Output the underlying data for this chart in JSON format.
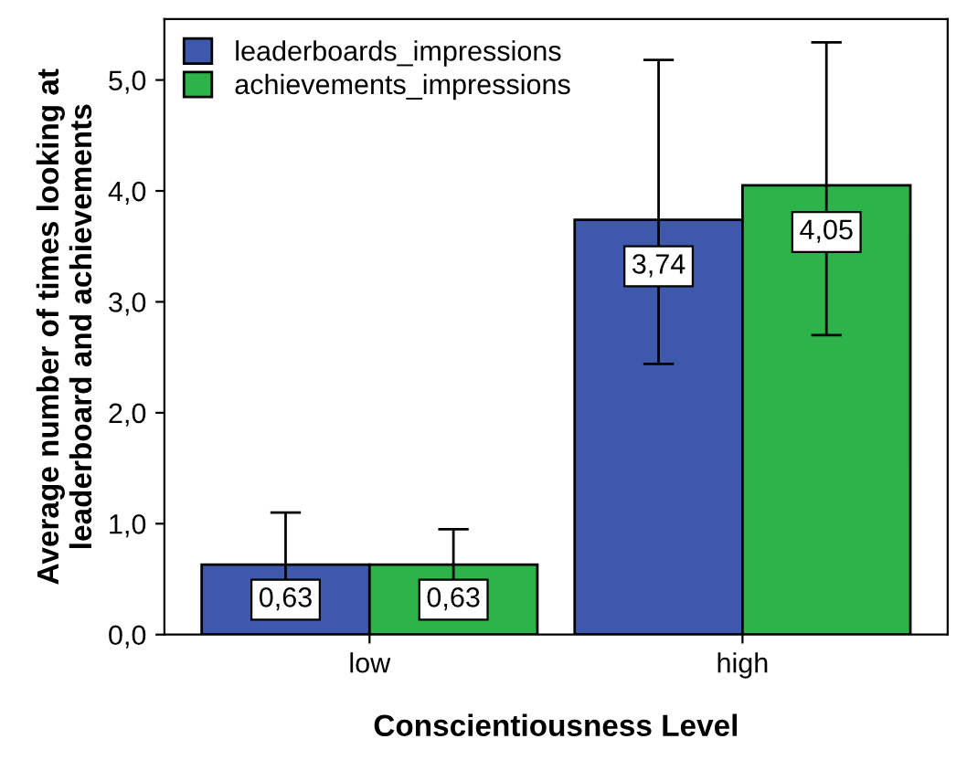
{
  "chart_data": {
    "type": "bar",
    "xlabel": "Conscientiousness Level",
    "ylabel": "Average number of times looking at\nleaderboard and achievements",
    "categories": [
      "low",
      "high"
    ],
    "series": [
      {
        "name": "leaderboards_impressions",
        "color": "#3e58ac",
        "values": [
          0.63,
          3.74
        ],
        "errors": [
          [
            0.16,
            1.1
          ],
          [
            2.44,
            5.18
          ]
        ],
        "value_labels": [
          "0,63",
          "3,74"
        ]
      },
      {
        "name": "achievements_impressions",
        "color": "#2db34a",
        "values": [
          0.63,
          4.05
        ],
        "errors": [
          [
            0.31,
            0.95
          ],
          [
            2.7,
            5.34
          ]
        ],
        "value_labels": [
          "0,63",
          "4,05"
        ]
      }
    ],
    "ylim": [
      0,
      5.55
    ],
    "yticks": [
      {
        "value": 0,
        "label": "0,0"
      },
      {
        "value": 1,
        "label": "1,0"
      },
      {
        "value": 2,
        "label": "2,0"
      },
      {
        "value": 3,
        "label": "3,0"
      },
      {
        "value": 4,
        "label": "4,0"
      },
      {
        "value": 5,
        "label": "5,0"
      }
    ],
    "grid": false,
    "legend": "top left"
  }
}
